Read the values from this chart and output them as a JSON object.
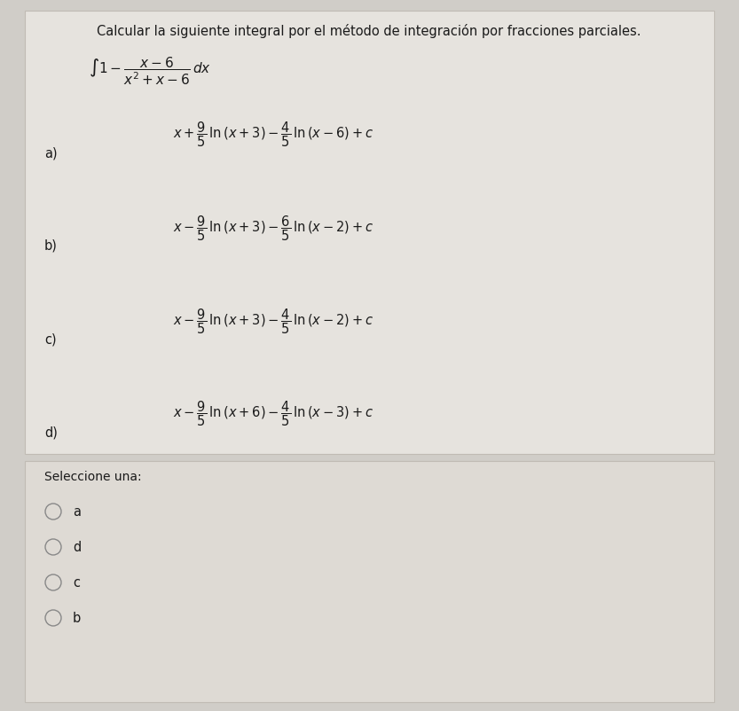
{
  "bg_color": "#d0cdc8",
  "upper_box_bg": "#e6e3de",
  "lower_box_bg": "#dedad4",
  "title": "Calcular la siguiente integral por el método de integración por fracciones parciales.",
  "options": [
    {
      "label": "a)",
      "formula_plain": "x + ⁄₉₅ In (x + 3) - ⁄₄₅ In ( x - 6) + c",
      "formula_tex": "$x + \\frac{9}{5}\\,\\mathrm{In}\\,(x+3) - \\frac{4}{5}\\,\\mathrm{In}\\,(x-6) + c$"
    },
    {
      "label": "b)",
      "formula_tex": "$x - \\frac{9}{5}\\,\\mathrm{In}\\,(x+3) - \\frac{6}{5}\\,\\mathrm{In}\\,(x-2) + c$"
    },
    {
      "label": "c)",
      "formula_tex": "$x - \\frac{9}{5}\\,\\mathrm{In}\\,(x+3) - \\frac{4}{5}\\,\\mathrm{In}\\,(x-2) + c$"
    },
    {
      "label": "d)",
      "formula_tex": "$x - \\frac{9}{5}\\,\\mathrm{In}\\,(x+6) - \\frac{4}{5}\\,\\mathrm{In}\\,(x-3) + c$"
    }
  ],
  "select_label": "Seleccione una:",
  "radio_options": [
    "a",
    "d",
    "c",
    "b"
  ]
}
